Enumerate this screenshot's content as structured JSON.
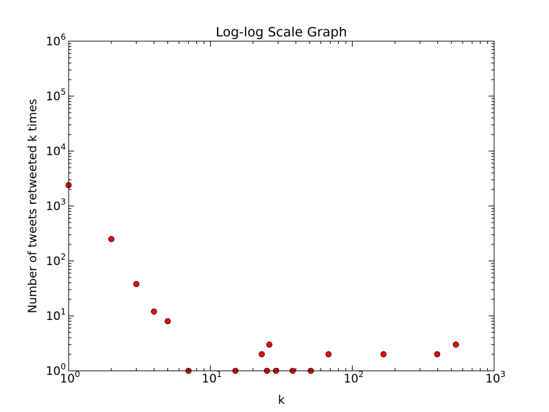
{
  "chart_data": {
    "type": "scatter",
    "title": "Log-log Scale Graph",
    "xlabel": "k",
    "ylabel": "Number of tweets retweeted k times",
    "xscale": "log",
    "yscale": "log",
    "xlim": [
      1,
      1000
    ],
    "ylim": [
      1,
      1000000
    ],
    "xticks": [
      {
        "value": 1,
        "base": "10",
        "exp": "0"
      },
      {
        "value": 10,
        "base": "10",
        "exp": "1"
      },
      {
        "value": 100,
        "base": "10",
        "exp": "2"
      },
      {
        "value": 1000,
        "base": "10",
        "exp": "3"
      }
    ],
    "yticks": [
      {
        "value": 1,
        "base": "10",
        "exp": "0"
      },
      {
        "value": 10,
        "base": "10",
        "exp": "1"
      },
      {
        "value": 100,
        "base": "10",
        "exp": "2"
      },
      {
        "value": 1000,
        "base": "10",
        "exp": "3"
      },
      {
        "value": 10000,
        "base": "10",
        "exp": "4"
      },
      {
        "value": 100000,
        "base": "10",
        "exp": "5"
      },
      {
        "value": 1000000,
        "base": "10",
        "exp": "6"
      }
    ],
    "grid": false,
    "marker_color": "#ff0000",
    "marker_edge_color": "#000000",
    "points": [
      {
        "x": 1,
        "y": 2400
      },
      {
        "x": 2,
        "y": 250
      },
      {
        "x": 3,
        "y": 38
      },
      {
        "x": 4,
        "y": 12
      },
      {
        "x": 5,
        "y": 8
      },
      {
        "x": 7,
        "y": 1
      },
      {
        "x": 15,
        "y": 1
      },
      {
        "x": 23,
        "y": 2
      },
      {
        "x": 25,
        "y": 1
      },
      {
        "x": 26,
        "y": 3
      },
      {
        "x": 29,
        "y": 1
      },
      {
        "x": 38,
        "y": 1
      },
      {
        "x": 51,
        "y": 1
      },
      {
        "x": 68,
        "y": 2
      },
      {
        "x": 166,
        "y": 2
      },
      {
        "x": 397,
        "y": 2
      },
      {
        "x": 538,
        "y": 3
      }
    ]
  }
}
